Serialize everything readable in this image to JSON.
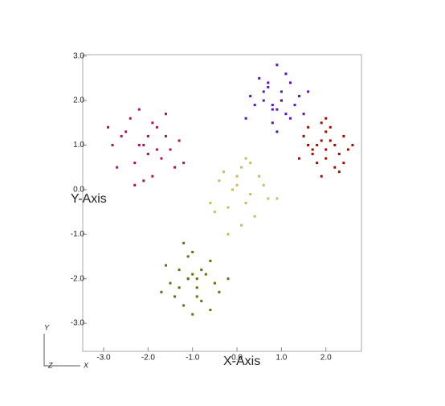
{
  "chart_data": {
    "type": "scatter",
    "x_label": "X-Axis",
    "y_label": "Y-Axis",
    "axis_triad": {
      "y": "Y",
      "z": "Z",
      "x": "X"
    },
    "xlim": [
      -3.47,
      2.8
    ],
    "ylim": [
      -3.63,
      3.03
    ],
    "xticks": [
      {
        "value": -3,
        "label": "-3.0"
      },
      {
        "value": -2,
        "label": "-2.0"
      },
      {
        "value": -1,
        "label": "-1.0"
      },
      {
        "value": 0,
        "label": "0.0"
      },
      {
        "value": 1,
        "label": "1.0"
      },
      {
        "value": 2,
        "label": "2.0"
      }
    ],
    "yticks": [
      {
        "value": -3,
        "label": "-3.0"
      },
      {
        "value": -2,
        "label": "-2.0"
      },
      {
        "value": -1,
        "label": "-1.0"
      },
      {
        "value": 0,
        "label": "0.0"
      },
      {
        "value": 1,
        "label": "1.0"
      },
      {
        "value": 2,
        "label": "2.0"
      },
      {
        "value": 3,
        "label": "3.0"
      }
    ],
    "series": [
      {
        "color": "#a8135e",
        "x": [
          -2.6,
          -2.3,
          -1.8,
          -1.5,
          -2.1,
          -1.9,
          -2.4,
          -1.6,
          -2.0,
          -2.7,
          -1.3,
          -2.2,
          -1.7,
          -2.5,
          -1.9,
          -2.1,
          -1.4,
          -2.8,
          -2.0,
          -1.8,
          -2.3,
          -1.6,
          -2.2,
          -1.2,
          -2.9
        ],
        "values": [
          1.2,
          0.6,
          1.4,
          0.9,
          1.0,
          0.3,
          1.6,
          1.2,
          0.8,
          0.5,
          1.1,
          1.8,
          0.7,
          1.3,
          1.5,
          0.2,
          0.5,
          1.0,
          1.2,
          0.9,
          0.1,
          1.7,
          1.0,
          0.6,
          1.4
        ]
      },
      {
        "color": "#5a12b4",
        "x": [
          0.6,
          0.9,
          1.2,
          0.4,
          1.0,
          0.8,
          1.4,
          0.5,
          1.1,
          0.7,
          0.9,
          1.3,
          0.2,
          1.0,
          0.8,
          1.5,
          0.6,
          1.1,
          0.9,
          0.3,
          1.2,
          0.7,
          1.0,
          0.8,
          1.6
        ],
        "values": [
          2.2,
          1.8,
          2.4,
          1.9,
          2.0,
          1.5,
          2.1,
          2.5,
          1.7,
          2.3,
          2.8,
          1.9,
          1.6,
          2.2,
          1.9,
          1.7,
          2.0,
          2.6,
          1.3,
          2.1,
          1.6,
          2.4,
          2.0,
          1.8,
          2.2
        ]
      },
      {
        "color": "#a00a00",
        "x": [
          1.6,
          2.0,
          2.3,
          1.8,
          2.1,
          1.5,
          2.5,
          1.9,
          2.2,
          1.7,
          2.0,
          2.4,
          1.4,
          1.9,
          2.1,
          1.8,
          2.6,
          2.0,
          1.6,
          2.3,
          1.9,
          2.2,
          1.7,
          2.0,
          2.4
        ],
        "values": [
          1.0,
          1.3,
          0.8,
          0.6,
          1.1,
          1.2,
          0.9,
          1.5,
          0.5,
          0.8,
          0.9,
          1.2,
          0.7,
          0.3,
          1.4,
          1.0,
          1.0,
          0.7,
          1.4,
          0.4,
          1.1,
          1.0,
          0.9,
          1.6,
          0.6
        ]
      },
      {
        "color": "#c4bd62",
        "x": [
          -0.4,
          0.1,
          0.3,
          -0.2,
          0.5,
          0.0,
          -0.6,
          0.2,
          0.4,
          -0.1,
          0.7,
          -0.3,
          0.1,
          0.6,
          -0.5,
          0.2,
          0.0,
          0.3,
          -0.2,
          0.9
        ],
        "values": [
          0.2,
          0.5,
          -0.1,
          -0.4,
          0.3,
          0.1,
          -0.3,
          0.7,
          -0.6,
          0.0,
          -0.2,
          0.4,
          -0.8,
          0.1,
          -0.5,
          -0.3,
          0.3,
          0.6,
          -1.0,
          -0.2
        ]
      },
      {
        "color": "#6b6a10",
        "x": [
          -1.3,
          -0.9,
          -0.6,
          -1.1,
          -0.8,
          -1.5,
          -1.0,
          -0.7,
          -1.2,
          -0.4,
          -1.6,
          -0.9,
          -1.1,
          -0.5,
          -1.4,
          -1.0,
          -0.8,
          -1.3,
          -0.2,
          -1.7,
          -1.0,
          -0.6,
          -1.2,
          -0.9,
          -1.1
        ],
        "values": [
          -1.8,
          -2.2,
          -1.6,
          -2.0,
          -2.5,
          -2.1,
          -1.4,
          -1.9,
          -2.6,
          -2.3,
          -1.7,
          -2.0,
          -1.5,
          -2.1,
          -2.4,
          -2.8,
          -1.8,
          -2.2,
          -2.0,
          -2.3,
          -1.9,
          -2.7,
          -1.2,
          -2.4,
          -2.0
        ]
      }
    ]
  }
}
